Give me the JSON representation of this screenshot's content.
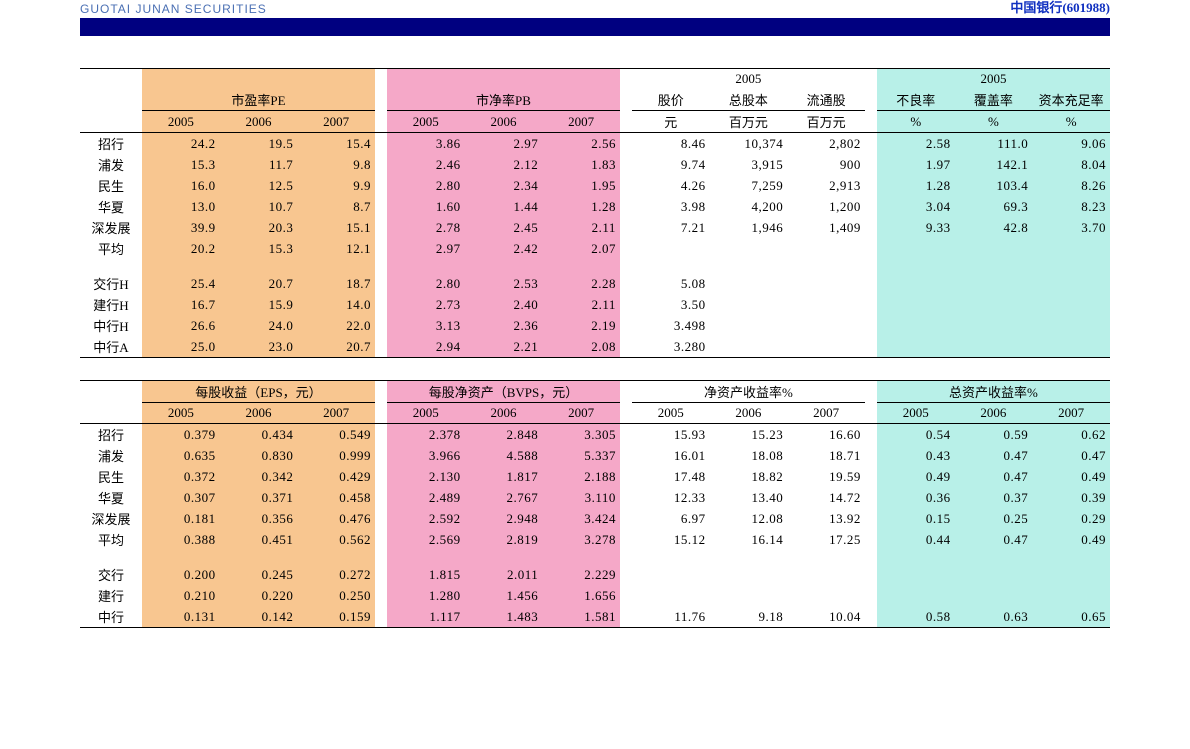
{
  "header": {
    "brand_text": "GUOTAI JUNAN SECURITIES",
    "ticker_text": "中国银行(601988)"
  },
  "colors": {
    "pe_bg": "#f8c690",
    "pb_bg": "#f5a8c8",
    "right_bg": "#b8f0e8",
    "border": "#000000",
    "header_bar": "#000080",
    "brand_color": "#4a6fb3",
    "ticker_color": "#1030c0"
  },
  "table1": {
    "section_headers": {
      "pe": "市盈率PE",
      "pb": "市净率PB",
      "y2005": "2005",
      "price": "股价",
      "total_shares": "总股本",
      "float_shares": "流通股",
      "npl": "不良率",
      "coverage": "覆盖率",
      "car": "资本充足率"
    },
    "sub_years": {
      "y05": "2005",
      "y06": "2006",
      "y07": "2007"
    },
    "units": {
      "yuan": "元",
      "million": "百万元",
      "pct": "%"
    },
    "rows": [
      {
        "label": "招行",
        "pe": [
          "24.2",
          "19.5",
          "15.4"
        ],
        "pb": [
          "3.86",
          "2.97",
          "2.56"
        ],
        "price": "8.46",
        "tot": "10,374",
        "flt": "2,802",
        "npl": "2.58",
        "cov": "111.0",
        "car": "9.06"
      },
      {
        "label": "浦发",
        "pe": [
          "15.3",
          "11.7",
          "9.8"
        ],
        "pb": [
          "2.46",
          "2.12",
          "1.83"
        ],
        "price": "9.74",
        "tot": "3,915",
        "flt": "900",
        "npl": "1.97",
        "cov": "142.1",
        "car": "8.04"
      },
      {
        "label": "民生",
        "pe": [
          "16.0",
          "12.5",
          "9.9"
        ],
        "pb": [
          "2.80",
          "2.34",
          "1.95"
        ],
        "price": "4.26",
        "tot": "7,259",
        "flt": "2,913",
        "npl": "1.28",
        "cov": "103.4",
        "car": "8.26"
      },
      {
        "label": "华夏",
        "pe": [
          "13.0",
          "10.7",
          "8.7"
        ],
        "pb": [
          "1.60",
          "1.44",
          "1.28"
        ],
        "price": "3.98",
        "tot": "4,200",
        "flt": "1,200",
        "npl": "3.04",
        "cov": "69.3",
        "car": "8.23"
      },
      {
        "label": "深发展",
        "pe": [
          "39.9",
          "20.3",
          "15.1"
        ],
        "pb": [
          "2.78",
          "2.45",
          "2.11"
        ],
        "price": "7.21",
        "tot": "1,946",
        "flt": "1,409",
        "npl": "9.33",
        "cov": "42.8",
        "car": "3.70"
      },
      {
        "label": "平均",
        "pe": [
          "20.2",
          "15.3",
          "12.1"
        ],
        "pb": [
          "2.97",
          "2.42",
          "2.07"
        ],
        "price": "",
        "tot": "",
        "flt": "",
        "npl": "",
        "cov": "",
        "car": ""
      }
    ],
    "rows2": [
      {
        "label": "交行H",
        "pe": [
          "25.4",
          "20.7",
          "18.7"
        ],
        "pb": [
          "2.80",
          "2.53",
          "2.28"
        ],
        "price": "5.08"
      },
      {
        "label": "建行H",
        "pe": [
          "16.7",
          "15.9",
          "14.0"
        ],
        "pb": [
          "2.73",
          "2.40",
          "2.11"
        ],
        "price": "3.50"
      },
      {
        "label": "中行H",
        "pe": [
          "26.6",
          "24.0",
          "22.0"
        ],
        "pb": [
          "3.13",
          "2.36",
          "2.19"
        ],
        "price": "3.498"
      },
      {
        "label": "中行A",
        "pe": [
          "25.0",
          "23.0",
          "20.7"
        ],
        "pb": [
          "2.94",
          "2.21",
          "2.08"
        ],
        "price": "3.280"
      }
    ]
  },
  "table2": {
    "section_headers": {
      "eps": "每股收益（EPS，元）",
      "bvps": "每股净资产（BVPS，元）",
      "roe": "净资产收益率%",
      "roa": "总资产收益率%"
    },
    "sub_years": {
      "y05": "2005",
      "y06": "2006",
      "y07": "2007"
    },
    "rows": [
      {
        "label": "招行",
        "eps": [
          "0.379",
          "0.434",
          "0.549"
        ],
        "bvps": [
          "2.378",
          "2.848",
          "3.305"
        ],
        "roe": [
          "15.93",
          "15.23",
          "16.60"
        ],
        "roa": [
          "0.54",
          "0.59",
          "0.62"
        ]
      },
      {
        "label": "浦发",
        "eps": [
          "0.635",
          "0.830",
          "0.999"
        ],
        "bvps": [
          "3.966",
          "4.588",
          "5.337"
        ],
        "roe": [
          "16.01",
          "18.08",
          "18.71"
        ],
        "roa": [
          "0.43",
          "0.47",
          "0.47"
        ]
      },
      {
        "label": "民生",
        "eps": [
          "0.372",
          "0.342",
          "0.429"
        ],
        "bvps": [
          "2.130",
          "1.817",
          "2.188"
        ],
        "roe": [
          "17.48",
          "18.82",
          "19.59"
        ],
        "roa": [
          "0.49",
          "0.47",
          "0.49"
        ]
      },
      {
        "label": "华夏",
        "eps": [
          "0.307",
          "0.371",
          "0.458"
        ],
        "bvps": [
          "2.489",
          "2.767",
          "3.110"
        ],
        "roe": [
          "12.33",
          "13.40",
          "14.72"
        ],
        "roa": [
          "0.36",
          "0.37",
          "0.39"
        ]
      },
      {
        "label": "深发展",
        "eps": [
          "0.181",
          "0.356",
          "0.476"
        ],
        "bvps": [
          "2.592",
          "2.948",
          "3.424"
        ],
        "roe": [
          "6.97",
          "12.08",
          "13.92"
        ],
        "roa": [
          "0.15",
          "0.25",
          "0.29"
        ]
      },
      {
        "label": "平均",
        "eps": [
          "0.388",
          "0.451",
          "0.562"
        ],
        "bvps": [
          "2.569",
          "2.819",
          "3.278"
        ],
        "roe": [
          "15.12",
          "16.14",
          "17.25"
        ],
        "roa": [
          "0.44",
          "0.47",
          "0.49"
        ]
      }
    ],
    "rows2": [
      {
        "label": "交行",
        "eps": [
          "0.200",
          "0.245",
          "0.272"
        ],
        "bvps": [
          "1.815",
          "2.011",
          "2.229"
        ],
        "roe": [
          "",
          "",
          ""
        ],
        "roa": [
          "",
          "",
          ""
        ]
      },
      {
        "label": "建行",
        "eps": [
          "0.210",
          "0.220",
          "0.250"
        ],
        "bvps": [
          "1.280",
          "1.456",
          "1.656"
        ],
        "roe": [
          "",
          "",
          ""
        ],
        "roa": [
          "",
          "",
          ""
        ]
      },
      {
        "label": "中行",
        "eps": [
          "0.131",
          "0.142",
          "0.159"
        ],
        "bvps": [
          "1.117",
          "1.483",
          "1.581"
        ],
        "roe": [
          "11.76",
          "9.18",
          "10.04"
        ],
        "roa": [
          "0.58",
          "0.63",
          "0.65"
        ]
      }
    ]
  }
}
